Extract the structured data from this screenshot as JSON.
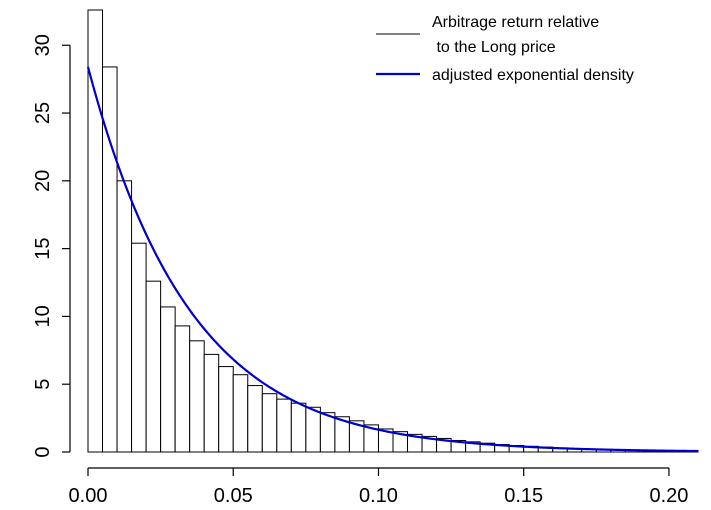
{
  "chart_data": {
    "type": "bar",
    "title": "",
    "xlabel": "",
    "ylabel": "",
    "bin_width": 0.005,
    "x_bin_starts": [
      0.0,
      0.005,
      0.01,
      0.015,
      0.02,
      0.025,
      0.03,
      0.035,
      0.04,
      0.045,
      0.05,
      0.055,
      0.06,
      0.065,
      0.07,
      0.075,
      0.08,
      0.085,
      0.09,
      0.095,
      0.1,
      0.105,
      0.11,
      0.115,
      0.12,
      0.125,
      0.13,
      0.135,
      0.14,
      0.145,
      0.15,
      0.155,
      0.16,
      0.165,
      0.17,
      0.175,
      0.18,
      0.185,
      0.19,
      0.195,
      0.2,
      0.205
    ],
    "values": [
      32.6,
      28.4,
      20.0,
      15.4,
      12.6,
      10.7,
      9.3,
      8.2,
      7.2,
      6.3,
      5.7,
      4.9,
      4.3,
      3.9,
      3.6,
      3.3,
      2.9,
      2.6,
      2.3,
      2.0,
      1.7,
      1.5,
      1.3,
      1.15,
      1.0,
      0.85,
      0.75,
      0.65,
      0.55,
      0.48,
      0.42,
      0.36,
      0.3,
      0.26,
      0.22,
      0.19,
      0.16,
      0.14,
      0.12,
      0.1,
      0.1,
      0.1
    ],
    "series": [
      {
        "name": "Arbitrage return relative\n to the Long price",
        "kind": "histogram",
        "color": "#000000"
      },
      {
        "name": "adjusted exponential density",
        "kind": "line",
        "color": "#0000cc",
        "rate": 28.5,
        "amplitude": 28.4
      }
    ],
    "xlim": [
      0,
      0.21
    ],
    "ylim": [
      0,
      32.6
    ],
    "x_ticks": [
      "0.00",
      "0.05",
      "0.10",
      "0.15",
      "0.20"
    ],
    "x_tick_values": [
      0,
      0.05,
      0.1,
      0.15,
      0.2
    ],
    "y_ticks": [
      "0",
      "5",
      "10",
      "15",
      "20",
      "25",
      "30"
    ],
    "y_tick_values": [
      0,
      5,
      10,
      15,
      20,
      25,
      30
    ],
    "legend": {
      "position": "top-right",
      "entries": [
        {
          "line1": "Arbitrage return relative",
          "line2": " to the Long price",
          "color": "#000000"
        },
        {
          "line1": "adjusted exponential density",
          "line2": "",
          "color": "#0000cc"
        }
      ]
    },
    "grid": false
  }
}
